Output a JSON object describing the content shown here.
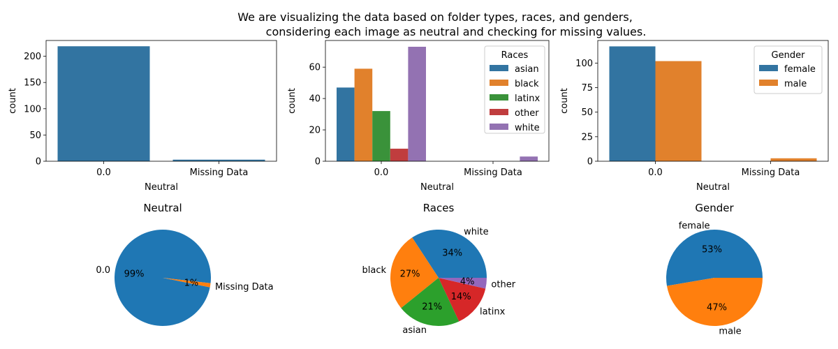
{
  "suptitle": [
    "We are visualizing the data based on folder types, races, and genders,",
    "considering each image as neutral and checking for missing values."
  ],
  "chart_data": [
    {
      "id": "bar-neutral",
      "type": "bar",
      "categories": [
        "0.0",
        "Missing Data"
      ],
      "series": [
        {
          "name": "",
          "color": "#3274a1",
          "values": [
            219,
            3
          ]
        }
      ],
      "xlabel": "Neutral",
      "ylabel": "count",
      "ylim": [
        0,
        230
      ],
      "yticks": [
        0,
        50,
        100,
        150,
        200
      ]
    },
    {
      "id": "bar-races",
      "type": "bar",
      "categories": [
        "0.0",
        "Missing Data"
      ],
      "series": [
        {
          "name": "asian",
          "color": "#3274a1",
          "values": [
            47,
            0
          ]
        },
        {
          "name": "black",
          "color": "#e1812c",
          "values": [
            59,
            0
          ]
        },
        {
          "name": "latinx",
          "color": "#3a923a",
          "values": [
            32,
            0
          ]
        },
        {
          "name": "other",
          "color": "#c03d3e",
          "values": [
            8,
            0
          ]
        },
        {
          "name": "white",
          "color": "#9372b2",
          "values": [
            73,
            3
          ]
        }
      ],
      "legend_title": "Races",
      "legend": "upper right",
      "xlabel": "Neutral",
      "ylabel": "count",
      "ylim": [
        0,
        77
      ],
      "yticks": [
        0,
        20,
        40,
        60
      ]
    },
    {
      "id": "bar-gender",
      "type": "bar",
      "categories": [
        "0.0",
        "Missing Data"
      ],
      "series": [
        {
          "name": "female",
          "color": "#3274a1",
          "values": [
            117,
            0
          ]
        },
        {
          "name": "male",
          "color": "#e1812c",
          "values": [
            102,
            3
          ]
        }
      ],
      "legend_title": "Gender",
      "legend": "upper right",
      "xlabel": "Neutral",
      "ylabel": "count",
      "ylim": [
        0,
        123
      ],
      "yticks": [
        0,
        25,
        50,
        75,
        100
      ]
    },
    {
      "id": "pie-neutral",
      "type": "pie",
      "title": "Neutral",
      "slices": [
        {
          "label": "0.0",
          "pct": "99%",
          "value": 219,
          "color": "#1f77b4"
        },
        {
          "label": "Missing Data",
          "pct": "1%",
          "value": 3,
          "color": "#ff7f0e"
        }
      ]
    },
    {
      "id": "pie-races",
      "type": "pie",
      "title": "Races",
      "slices": [
        {
          "label": "white",
          "pct": "34%",
          "value": 76,
          "color": "#1f77b4"
        },
        {
          "label": "black",
          "pct": "27%",
          "value": 59,
          "color": "#ff7f0e"
        },
        {
          "label": "asian",
          "pct": "21%",
          "value": 47,
          "color": "#2ca02c"
        },
        {
          "label": "latinx",
          "pct": "14%",
          "value": 32,
          "color": "#d62728"
        },
        {
          "label": "other",
          "pct": "4%",
          "value": 8,
          "color": "#9467bd"
        }
      ]
    },
    {
      "id": "pie-gender",
      "type": "pie",
      "title": "Gender",
      "slices": [
        {
          "label": "female",
          "pct": "53%",
          "value": 117,
          "color": "#1f77b4"
        },
        {
          "label": "male",
          "pct": "47%",
          "value": 105,
          "color": "#ff7f0e"
        }
      ]
    }
  ]
}
